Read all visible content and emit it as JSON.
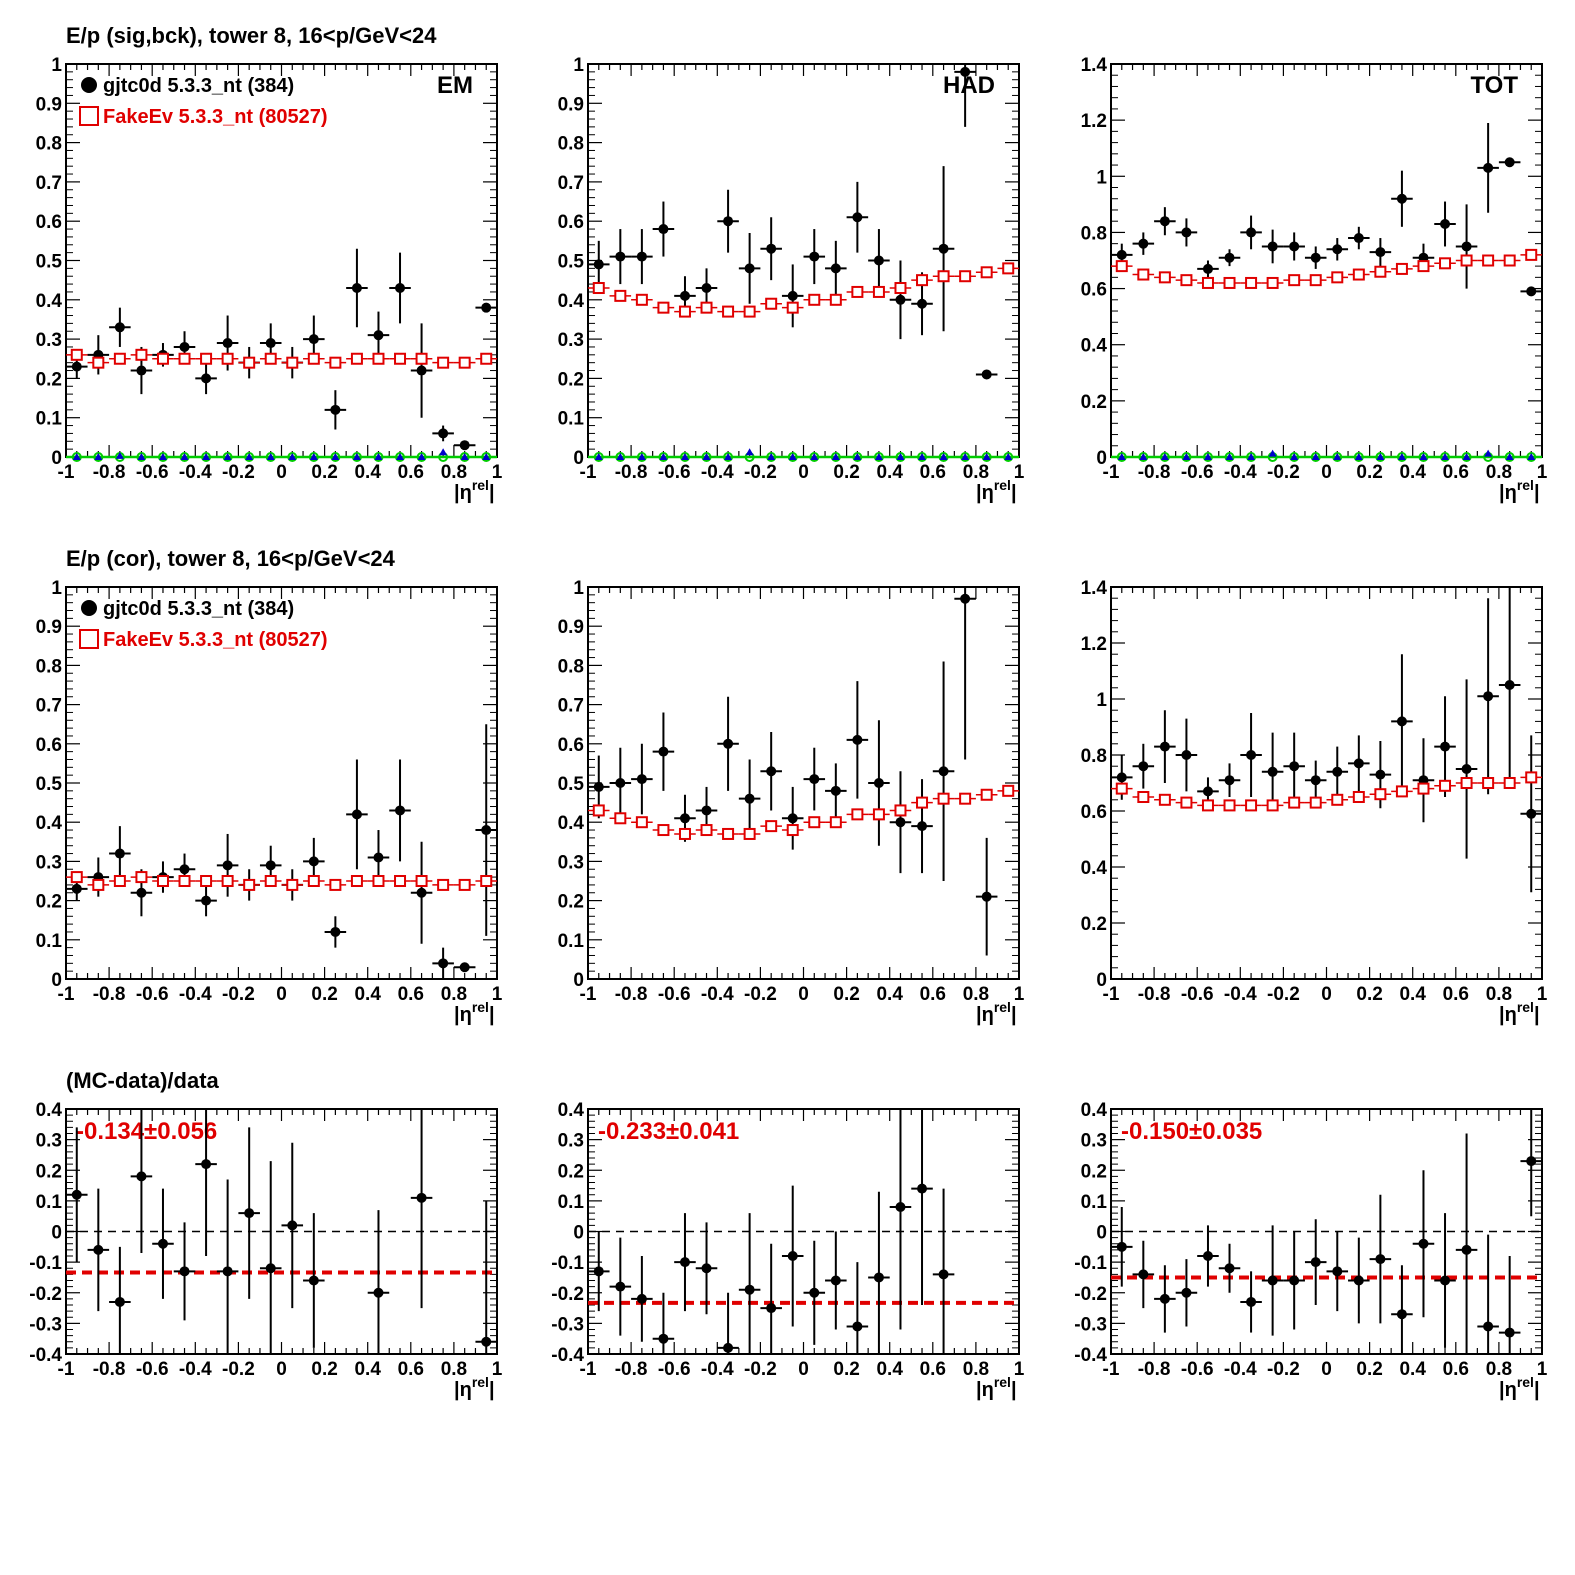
{
  "colors": {
    "data": "#000000",
    "mc": "#e00000",
    "blue": "#0000cc",
    "green": "#00cc00"
  },
  "row_titles": [
    "E/p (sig,bck), tower 8, 16<p/GeV<24",
    "E/p (cor), tower 8, 16<p/GeV<24",
    "(MC-data)/data"
  ],
  "legend": {
    "data": "gjtc0d 5.3.3_nt (384)",
    "mc": "FakeEv 5.3.3_nt (80527)"
  },
  "panel_tags": [
    "EM",
    "HAD",
    "TOT"
  ],
  "fit_labels": [
    "-0.134±0.056",
    "-0.233±0.041",
    "-0.150±0.035"
  ],
  "xlabel_main": "|η",
  "xlabel_sup": "rel",
  "xlabel_end": "|",
  "chart_data": [
    {
      "type": "scatter",
      "panel": "sig-EM",
      "xlim": [
        -1,
        1
      ],
      "ylim": [
        0,
        1
      ],
      "legend": "top-left",
      "tag": "EM",
      "yticks": [
        0,
        0.1,
        0.2,
        0.3,
        0.4,
        0.5,
        0.6,
        0.7,
        0.8,
        0.9,
        1
      ],
      "series": [
        {
          "name": "gjtc0d 5.3.3_nt (384)",
          "style": "data",
          "y": [
            0.23,
            0.26,
            0.33,
            0.22,
            0.26,
            0.28,
            0.2,
            0.29,
            0.24,
            0.29,
            0.24,
            0.3,
            0.12,
            0.43,
            0.31,
            0.43,
            0.22,
            0.06,
            0.03,
            0.38
          ],
          "err": [
            0.03,
            0.05,
            0.05,
            0.06,
            0.03,
            0.04,
            0.04,
            0.07,
            0.04,
            0.05,
            0.04,
            0.06,
            0.05,
            0.1,
            0.06,
            0.09,
            0.12,
            0.02,
            0.005,
            0.005
          ]
        },
        {
          "name": "FakeEv 5.3.3_nt (80527)",
          "style": "mc",
          "y": [
            0.26,
            0.24,
            0.25,
            0.26,
            0.25,
            0.25,
            0.25,
            0.25,
            0.24,
            0.25,
            0.24,
            0.25,
            0.24,
            0.25,
            0.25,
            0.25,
            0.25,
            0.24,
            0.24,
            0.25
          ]
        },
        {
          "style": "green",
          "y": [
            0,
            0,
            0,
            0,
            0,
            0,
            0,
            0,
            0,
            0,
            0,
            0,
            0,
            0,
            0,
            0,
            0,
            0,
            0,
            0
          ]
        },
        {
          "style": "blue",
          "y": [
            0,
            0,
            0.003,
            0,
            0,
            0,
            0,
            0,
            0,
            0,
            0,
            0,
            0,
            0,
            0,
            0,
            0,
            0.012,
            0,
            0
          ]
        }
      ]
    },
    {
      "type": "scatter",
      "panel": "sig-HAD",
      "xlim": [
        -1,
        1
      ],
      "ylim": [
        0,
        1
      ],
      "tag": "HAD",
      "yticks": [
        0,
        0.1,
        0.2,
        0.3,
        0.4,
        0.5,
        0.6,
        0.7,
        0.8,
        0.9,
        1
      ],
      "series": [
        {
          "name": "gjtc0d 5.3.3_nt (384)",
          "style": "data",
          "y": [
            0.49,
            0.51,
            0.51,
            0.58,
            0.41,
            0.43,
            0.6,
            0.48,
            0.53,
            0.41,
            0.51,
            0.48,
            0.61,
            0.5,
            0.4,
            0.39,
            0.53,
            0.98,
            0.21
          ],
          "err": [
            0.06,
            0.07,
            0.07,
            0.07,
            0.05,
            0.05,
            0.08,
            0.09,
            0.08,
            0.08,
            0.07,
            0.07,
            0.09,
            0.08,
            0.1,
            0.08,
            0.21,
            0.14,
            0.005
          ]
        },
        {
          "name": "FakeEv 5.3.3_nt (80527)",
          "style": "mc",
          "y": [
            0.43,
            0.41,
            0.4,
            0.38,
            0.37,
            0.38,
            0.37,
            0.37,
            0.39,
            0.38,
            0.4,
            0.4,
            0.42,
            0.42,
            0.43,
            0.45,
            0.46,
            0.46,
            0.47,
            0.48
          ]
        },
        {
          "style": "green",
          "y": [
            0,
            0,
            0,
            0,
            0,
            0,
            0,
            0,
            0,
            0,
            0,
            0,
            0,
            0,
            0,
            0,
            0,
            0,
            0,
            0
          ]
        },
        {
          "style": "blue",
          "y": [
            0,
            0,
            0,
            0,
            0,
            0,
            0,
            0.012,
            0,
            0,
            0,
            0,
            0,
            0,
            0,
            0,
            0,
            0,
            0,
            0
          ]
        }
      ]
    },
    {
      "type": "scatter",
      "panel": "sig-TOT",
      "xlim": [
        -1,
        1
      ],
      "ylim": [
        0,
        1.4
      ],
      "tag": "TOT",
      "yticks": [
        0,
        0.2,
        0.4,
        0.6,
        0.8,
        1,
        1.2,
        1.4
      ],
      "series": [
        {
          "name": "gjtc0d 5.3.3_nt (384)",
          "style": "data",
          "y": [
            0.72,
            0.76,
            0.84,
            0.8,
            0.67,
            0.71,
            0.8,
            0.75,
            0.75,
            0.71,
            0.74,
            0.78,
            0.73,
            0.92,
            0.71,
            0.83,
            0.75,
            1.03,
            1.05,
            0.59
          ],
          "err": [
            0.04,
            0.04,
            0.05,
            0.05,
            0.03,
            0.03,
            0.06,
            0.06,
            0.05,
            0.04,
            0.04,
            0.04,
            0.05,
            0.1,
            0.05,
            0.08,
            0.15,
            0.16,
            0.005,
            0.005
          ]
        },
        {
          "name": "FakeEv 5.3.3_nt (80527)",
          "style": "mc",
          "y": [
            0.68,
            0.65,
            0.64,
            0.63,
            0.62,
            0.62,
            0.62,
            0.62,
            0.63,
            0.63,
            0.64,
            0.65,
            0.66,
            0.67,
            0.68,
            0.69,
            0.7,
            0.7,
            0.7,
            0.72
          ]
        },
        {
          "style": "green",
          "y": [
            0,
            0,
            0,
            0,
            0,
            0,
            0,
            0,
            0,
            0,
            0,
            0,
            0,
            0,
            0,
            0,
            0,
            0,
            0,
            0
          ]
        },
        {
          "style": "blue",
          "y": [
            0,
            0,
            0,
            0,
            0,
            0,
            0,
            0.012,
            0,
            0,
            0,
            0,
            0,
            0,
            0,
            0,
            0,
            0.012,
            0,
            0
          ]
        }
      ]
    },
    {
      "type": "scatter",
      "panel": "cor-EM",
      "xlim": [
        -1,
        1
      ],
      "ylim": [
        0,
        1
      ],
      "legend": "top-left",
      "yticks": [
        0,
        0.1,
        0.2,
        0.3,
        0.4,
        0.5,
        0.6,
        0.7,
        0.8,
        0.9,
        1
      ],
      "series": [
        {
          "name": "gjtc0d 5.3.3_nt (384)",
          "style": "data",
          "y": [
            0.23,
            0.26,
            0.32,
            0.22,
            0.26,
            0.28,
            0.2,
            0.29,
            0.24,
            0.29,
            0.24,
            0.3,
            0.12,
            0.42,
            0.31,
            0.43,
            0.22,
            0.04,
            0.03,
            0.38
          ],
          "err": [
            0.03,
            0.05,
            0.07,
            0.06,
            0.04,
            0.04,
            0.04,
            0.08,
            0.04,
            0.05,
            0.04,
            0.06,
            0.04,
            0.14,
            0.07,
            0.13,
            0.13,
            0.04,
            0.01,
            0.27
          ]
        },
        {
          "name": "FakeEv 5.3.3_nt (80527)",
          "style": "mc",
          "y": [
            0.26,
            0.24,
            0.25,
            0.26,
            0.25,
            0.25,
            0.25,
            0.25,
            0.24,
            0.25,
            0.24,
            0.25,
            0.24,
            0.25,
            0.25,
            0.25,
            0.25,
            0.24,
            0.24,
            0.25
          ]
        }
      ]
    },
    {
      "type": "scatter",
      "panel": "cor-HAD",
      "xlim": [
        -1,
        1
      ],
      "ylim": [
        0,
        1
      ],
      "yticks": [
        0,
        0.1,
        0.2,
        0.3,
        0.4,
        0.5,
        0.6,
        0.7,
        0.8,
        0.9,
        1
      ],
      "series": [
        {
          "name": "gjtc0d 5.3.3_nt (384)",
          "style": "data",
          "y": [
            0.49,
            0.5,
            0.51,
            0.58,
            0.41,
            0.43,
            0.6,
            0.46,
            0.53,
            0.41,
            0.51,
            0.48,
            0.61,
            0.5,
            0.4,
            0.39,
            0.53,
            0.97,
            0.21
          ],
          "err": [
            0.08,
            0.09,
            0.09,
            0.1,
            0.06,
            0.06,
            0.12,
            0.1,
            0.1,
            0.08,
            0.08,
            0.07,
            0.15,
            0.16,
            0.13,
            0.12,
            0.28,
            0.41,
            0.15
          ]
        },
        {
          "name": "FakeEv 5.3.3_nt (80527)",
          "style": "mc",
          "y": [
            0.43,
            0.41,
            0.4,
            0.38,
            0.37,
            0.38,
            0.37,
            0.37,
            0.39,
            0.38,
            0.4,
            0.4,
            0.42,
            0.42,
            0.43,
            0.45,
            0.46,
            0.46,
            0.47,
            0.48
          ]
        }
      ]
    },
    {
      "type": "scatter",
      "panel": "cor-TOT",
      "xlim": [
        -1,
        1
      ],
      "ylim": [
        0,
        1.4
      ],
      "yticks": [
        0,
        0.2,
        0.4,
        0.6,
        0.8,
        1,
        1.2,
        1.4
      ],
      "series": [
        {
          "name": "gjtc0d 5.3.3_nt (384)",
          "style": "data",
          "y": [
            0.72,
            0.76,
            0.83,
            0.8,
            0.67,
            0.71,
            0.8,
            0.74,
            0.76,
            0.71,
            0.74,
            0.77,
            0.73,
            0.92,
            0.71,
            0.83,
            0.75,
            1.01,
            1.05,
            0.59
          ],
          "err": [
            0.08,
            0.08,
            0.13,
            0.13,
            0.05,
            0.06,
            0.15,
            0.14,
            0.12,
            0.07,
            0.09,
            0.1,
            0.12,
            0.24,
            0.15,
            0.18,
            0.32,
            0.35,
            0.35,
            0.28
          ]
        },
        {
          "name": "FakeEv 5.3.3_nt (80527)",
          "style": "mc",
          "y": [
            0.68,
            0.65,
            0.64,
            0.63,
            0.62,
            0.62,
            0.62,
            0.62,
            0.63,
            0.63,
            0.64,
            0.65,
            0.66,
            0.67,
            0.68,
            0.69,
            0.7,
            0.7,
            0.7,
            0.72
          ]
        }
      ]
    },
    {
      "type": "scatter",
      "panel": "ratio-EM",
      "xlim": [
        -1,
        1
      ],
      "ylim": [
        -0.4,
        0.4
      ],
      "fit": -0.134,
      "fit_label": "-0.134±0.056",
      "yticks": [
        -0.4,
        -0.3,
        -0.2,
        -0.1,
        0,
        0.1,
        0.2,
        0.3,
        0.4
      ],
      "series": [
        {
          "name": "(MC-data)/data",
          "style": "data",
          "x": [
            -0.95,
            -0.85,
            -0.75,
            -0.65,
            -0.55,
            -0.45,
            -0.35,
            -0.25,
            -0.15,
            -0.05,
            0.05,
            0.15,
            0.45,
            0.65,
            0.95
          ],
          "y": [
            0.12,
            -0.06,
            -0.23,
            0.18,
            -0.04,
            -0.13,
            0.22,
            -0.13,
            0.06,
            -0.12,
            0.02,
            -0.16,
            -0.2,
            0.11,
            -0.36
          ],
          "err": [
            0.22,
            0.2,
            0.18,
            0.25,
            0.18,
            0.16,
            0.3,
            0.3,
            0.28,
            0.35,
            0.27,
            0.22,
            0.27,
            0.36,
            0.46
          ]
        }
      ]
    },
    {
      "type": "scatter",
      "panel": "ratio-HAD",
      "xlim": [
        -1,
        1
      ],
      "ylim": [
        -0.4,
        0.4
      ],
      "fit": -0.233,
      "fit_label": "-0.233±0.041",
      "yticks": [
        -0.4,
        -0.3,
        -0.2,
        -0.1,
        0,
        0.1,
        0.2,
        0.3,
        0.4
      ],
      "series": [
        {
          "name": "(MC-data)/data",
          "style": "data",
          "x": [
            -0.95,
            -0.85,
            -0.75,
            -0.65,
            -0.55,
            -0.45,
            -0.35,
            -0.25,
            -0.15,
            -0.05,
            0.05,
            0.15,
            0.25,
            0.35,
            0.45,
            0.55,
            0.65
          ],
          "y": [
            -0.13,
            -0.18,
            -0.22,
            -0.35,
            -0.1,
            -0.12,
            -0.38,
            -0.19,
            -0.25,
            -0.08,
            -0.2,
            -0.16,
            -0.31,
            -0.15,
            0.08,
            0.14,
            -0.14
          ],
          "err": [
            0.13,
            0.16,
            0.14,
            0.15,
            0.16,
            0.15,
            0.18,
            0.25,
            0.21,
            0.23,
            0.17,
            0.16,
            0.21,
            0.28,
            0.4,
            0.38,
            0.28
          ]
        }
      ]
    },
    {
      "type": "scatter",
      "panel": "ratio-TOT",
      "xlim": [
        -1,
        1
      ],
      "ylim": [
        -0.4,
        0.4
      ],
      "fit": -0.15,
      "fit_label": "-0.150±0.035",
      "yticks": [
        -0.4,
        -0.3,
        -0.2,
        -0.1,
        0,
        0.1,
        0.2,
        0.3,
        0.4
      ],
      "series": [
        {
          "name": "(MC-data)/data",
          "style": "data",
          "x": [
            -0.95,
            -0.85,
            -0.75,
            -0.65,
            -0.55,
            -0.45,
            -0.35,
            -0.25,
            -0.15,
            -0.05,
            0.05,
            0.15,
            0.25,
            0.35,
            0.45,
            0.55,
            0.65,
            0.75,
            0.85,
            0.95
          ],
          "y": [
            -0.05,
            -0.14,
            -0.22,
            -0.2,
            -0.08,
            -0.12,
            -0.23,
            -0.16,
            -0.16,
            -0.1,
            -0.13,
            -0.16,
            -0.09,
            -0.27,
            -0.04,
            -0.16,
            -0.06,
            -0.31,
            -0.33,
            0.23
          ],
          "err": [
            0.13,
            0.11,
            0.11,
            0.11,
            0.1,
            0.08,
            0.1,
            0.18,
            0.16,
            0.14,
            0.13,
            0.14,
            0.21,
            0.16,
            0.24,
            0.22,
            0.38,
            0.3,
            0.25,
            0.18
          ]
        }
      ]
    }
  ]
}
